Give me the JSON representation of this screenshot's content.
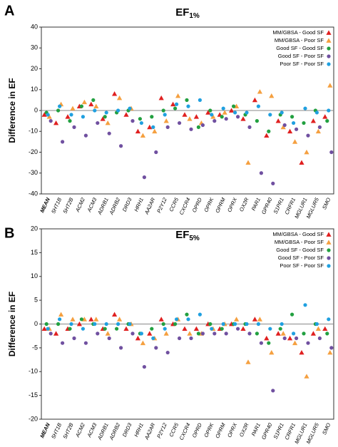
{
  "chart_data": [
    {
      "type": "scatter",
      "panel_label": "A",
      "title": "EF",
      "title_sub": "1%",
      "ylabel": "Difference in EF",
      "categories": [
        "MEAN",
        "5HT1B",
        "5HT2B",
        "ACM2",
        "ACM3",
        "ADRB1",
        "ADRB2",
        "DRD3",
        "HRH1",
        "AA2AR",
        "P2Y12",
        "CCR5",
        "CXCR4",
        "OPRD",
        "OPRK",
        "OPRM",
        "OPRX",
        "OX2R",
        "PAR1",
        "GPR40",
        "S1PR1",
        "CRFR1",
        "MGLUR1",
        "MGLUR5",
        "SMO"
      ],
      "ylim": [
        -40,
        40
      ],
      "yticks": [
        -40,
        -30,
        -20,
        -10,
        0,
        10,
        20,
        30,
        40
      ],
      "legend": "upper right",
      "series": [
        {
          "name": "MM/GBSA - Good SF",
          "color": "#e02020",
          "marker": "triangle",
          "values": [
            -2,
            -6,
            -3,
            2,
            3,
            -4,
            8,
            -2,
            -10,
            -8,
            6,
            3,
            -2,
            -3,
            -1,
            -2,
            0,
            -4,
            5,
            -12,
            -5,
            -10,
            -25,
            -5,
            -3
          ]
        },
        {
          "name": "MM/GBSA - Poor SF",
          "color": "#f5a040",
          "marker": "triangle",
          "values": [
            -3,
            3,
            1,
            4,
            2,
            -6,
            6,
            1,
            -12,
            -10,
            -5,
            7,
            -4,
            -6,
            -3,
            -1,
            2,
            -25,
            9,
            7,
            -8,
            -15,
            -20,
            -10,
            12
          ]
        },
        {
          "name": "Good SF - Good SF",
          "color": "#22a040",
          "marker": "circle",
          "values": [
            -1,
            0,
            -5,
            2,
            5,
            -3,
            -1,
            0,
            -4,
            -3,
            0,
            1,
            5,
            -8,
            0,
            -3,
            2,
            -2,
            -5,
            -10,
            -2,
            -3,
            -6,
            0,
            -5
          ]
        },
        {
          "name": "Good SF - Poor SF",
          "color": "#7050a0",
          "marker": "circle",
          "values": [
            -5,
            -15,
            -8,
            -12,
            -6,
            -11,
            -17,
            -5,
            -32,
            -20,
            -8,
            -6,
            -9,
            -7,
            -5,
            -4,
            -3,
            -8,
            -30,
            -35,
            -7,
            -9,
            -12,
            -8,
            -20
          ]
        },
        {
          "name": "Poor SF - Poor SF",
          "color": "#20a0e0",
          "marker": "circle",
          "values": [
            -2,
            2,
            -2,
            -3,
            0,
            -1,
            0,
            1,
            -6,
            -8,
            -2,
            3,
            2,
            5,
            -2,
            1,
            -1,
            -1,
            2,
            -2,
            -1,
            -6,
            1,
            -1,
            0
          ]
        }
      ]
    },
    {
      "type": "scatter",
      "panel_label": "B",
      "title": "EF",
      "title_sub": "5%",
      "ylabel": "Difference in EF",
      "categories": [
        "MEAN",
        "5HT1B",
        "5HT2B",
        "ACM2",
        "ACM3",
        "ADRB1",
        "ADRB2",
        "DRD3",
        "HRH1",
        "AA2AR",
        "P2Y12",
        "CCR5",
        "CXCR4",
        "OPRD",
        "OPRK",
        "OPRM",
        "OPRX",
        "OX2R",
        "PAR1",
        "GPR40",
        "S1PR1",
        "CRFR1",
        "MGLUR1",
        "MGLUR5",
        "SMO"
      ],
      "ylim": [
        -20,
        20
      ],
      "yticks": [
        -20,
        -15,
        -10,
        -5,
        0,
        5,
        10,
        15,
        20
      ],
      "legend": "upper right",
      "series": [
        {
          "name": "MM/GBSA - Good SF",
          "color": "#e02020",
          "marker": "triangle",
          "values": [
            -1,
            -2,
            -1,
            0,
            1,
            -1,
            2,
            -1,
            -3,
            -2,
            1,
            0,
            -1,
            -1,
            0,
            -1,
            0,
            -1,
            1,
            -3,
            -2,
            -3,
            -6,
            -2,
            -1
          ]
        },
        {
          "name": "MM/GBSA - Poor SF",
          "color": "#f5a040",
          "marker": "triangle",
          "values": [
            -1,
            2,
            1,
            1,
            1,
            -2,
            1,
            0,
            -4,
            -3,
            -2,
            1,
            -2,
            -2,
            -1,
            0,
            1,
            -8,
            1,
            -6,
            -2,
            -4,
            -11,
            -1,
            -6
          ]
        },
        {
          "name": "Good SF - Good SF",
          "color": "#22a040",
          "marker": "circle",
          "values": [
            0,
            0,
            -1,
            1,
            0,
            -1,
            -1,
            0,
            -2,
            -1,
            0,
            0,
            2,
            -2,
            0,
            -1,
            0,
            0,
            -2,
            -4,
            -1,
            2,
            -2,
            0,
            -2
          ]
        },
        {
          "name": "Good SF - Poor SF",
          "color": "#7050a0",
          "marker": "circle",
          "values": [
            -2,
            -4,
            -3,
            -4,
            -2,
            -3,
            -5,
            -2,
            -9,
            -5,
            -6,
            -3,
            -3,
            -2,
            -2,
            -2,
            -1,
            -2,
            -4,
            -14,
            -3,
            -3,
            -4,
            -3,
            -5
          ]
        },
        {
          "name": "Poor SF - Poor SF",
          "color": "#20a0e0",
          "marker": "circle",
          "values": [
            -1,
            1,
            0,
            -1,
            0,
            0,
            0,
            0,
            -2,
            -3,
            -1,
            1,
            1,
            2,
            -1,
            0,
            0,
            0,
            0,
            -1,
            0,
            -2,
            4,
            0,
            1
          ]
        }
      ]
    }
  ]
}
